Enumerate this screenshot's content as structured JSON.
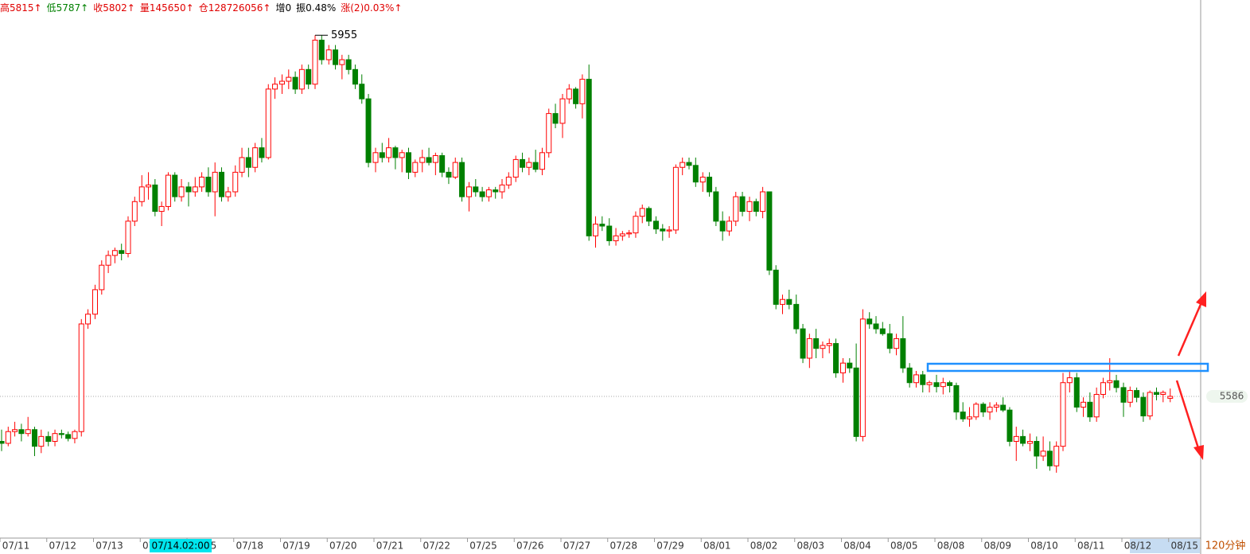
{
  "header": [
    {
      "text": "高5815↑",
      "color": "#e00000"
    },
    {
      "text": "低5787↑",
      "color": "#008000"
    },
    {
      "text": "收5802↑",
      "color": "#e00000"
    },
    {
      "text": "量145650↑",
      "color": "#e00000"
    },
    {
      "text": "仓128726056↑",
      "color": "#e00000"
    },
    {
      "text": "增0",
      "color": "#000000"
    },
    {
      "text": "振0.48%",
      "color": "#000000"
    },
    {
      "text": "涨(2)0.03%↑",
      "color": "#e00000"
    }
  ],
  "chart_data": {
    "type": "candlestick",
    "ylim": [
      5442,
      5991
    ],
    "up_color": "#ff0000",
    "down_color": "#008000",
    "high_annotation": {
      "label": "5955",
      "value": 5955
    },
    "last_price": 5586,
    "period_label": "120分钟",
    "cursor_label": "07/14.02:00",
    "days": [
      {
        "label": "07/11",
        "candles": [
          [
            5540,
            5552,
            5530,
            5538
          ],
          [
            5538,
            5555,
            5535,
            5550
          ],
          [
            5550,
            5560,
            5545,
            5552
          ],
          [
            5552,
            5558,
            5540,
            5548
          ],
          [
            5548,
            5565,
            5545,
            5552
          ],
          [
            5552,
            5555,
            5525,
            5535
          ],
          [
            5535,
            5552,
            5528,
            5545
          ]
        ]
      },
      {
        "label": "07/12",
        "candles": [
          [
            5545,
            5550,
            5535,
            5540
          ],
          [
            5540,
            5552,
            5535,
            5548
          ],
          [
            5548,
            5552,
            5543,
            5547
          ],
          [
            5547,
            5550,
            5540,
            5543
          ],
          [
            5543,
            5552,
            5538,
            5550
          ],
          [
            5550,
            5665,
            5545,
            5660
          ],
          [
            5660,
            5675,
            5655,
            5670
          ]
        ]
      },
      {
        "label": "07/13",
        "candles": [
          [
            5670,
            5700,
            5665,
            5695
          ],
          [
            5695,
            5725,
            5690,
            5720
          ],
          [
            5720,
            5735,
            5712,
            5730
          ],
          [
            5730,
            5738,
            5722,
            5735
          ],
          [
            5735,
            5742,
            5725,
            5732
          ],
          [
            5732,
            5770,
            5728,
            5765
          ],
          [
            5765,
            5790,
            5760,
            5785
          ]
        ]
      },
      {
        "label": "07/14",
        "candles": [
          [
            5785,
            5812,
            5780,
            5800
          ],
          [
            5800,
            5815,
            5787,
            5802
          ],
          [
            5802,
            5808,
            5770,
            5775
          ],
          [
            5775,
            5785,
            5760,
            5780
          ],
          [
            5780,
            5815,
            5776,
            5812
          ],
          [
            5812,
            5815,
            5785,
            5790
          ],
          [
            5790,
            5808,
            5785,
            5800
          ]
        ]
      },
      {
        "label": "07/15",
        "candles": [
          [
            5800,
            5805,
            5780,
            5795
          ],
          [
            5795,
            5810,
            5790,
            5800
          ],
          [
            5800,
            5815,
            5795,
            5810
          ],
          [
            5810,
            5820,
            5790,
            5795
          ],
          [
            5795,
            5825,
            5770,
            5815
          ],
          [
            5815,
            5820,
            5785,
            5790
          ],
          [
            5790,
            5800,
            5785,
            5795
          ]
        ]
      },
      {
        "label": "07/18",
        "candles": [
          [
            5795,
            5822,
            5790,
            5815
          ],
          [
            5815,
            5840,
            5810,
            5830
          ],
          [
            5830,
            5840,
            5810,
            5820
          ],
          [
            5820,
            5845,
            5815,
            5840
          ],
          [
            5840,
            5850,
            5825,
            5830
          ],
          [
            5830,
            5905,
            5828,
            5900
          ],
          [
            5900,
            5912,
            5890,
            5905
          ]
        ]
      },
      {
        "label": "07/19",
        "candles": [
          [
            5905,
            5915,
            5895,
            5908
          ],
          [
            5908,
            5920,
            5900,
            5912
          ],
          [
            5912,
            5918,
            5895,
            5900
          ],
          [
            5900,
            5925,
            5895,
            5920
          ],
          [
            5920,
            5925,
            5900,
            5905
          ],
          [
            5905,
            5955,
            5900,
            5950
          ],
          [
            5950,
            5955,
            5925,
            5930
          ]
        ]
      },
      {
        "label": "07/20",
        "candles": [
          [
            5930,
            5945,
            5925,
            5940
          ],
          [
            5940,
            5945,
            5920,
            5925
          ],
          [
            5925,
            5935,
            5910,
            5930
          ],
          [
            5930,
            5935,
            5915,
            5920
          ],
          [
            5920,
            5925,
            5900,
            5905
          ],
          [
            5905,
            5915,
            5885,
            5890
          ],
          [
            5890,
            5895,
            5820,
            5825
          ]
        ]
      },
      {
        "label": "07/21",
        "candles": [
          [
            5825,
            5840,
            5815,
            5835
          ],
          [
            5835,
            5845,
            5825,
            5830
          ],
          [
            5830,
            5850,
            5825,
            5840
          ],
          [
            5840,
            5842,
            5818,
            5830
          ],
          [
            5830,
            5838,
            5815,
            5835
          ],
          [
            5835,
            5840,
            5808,
            5815
          ],
          [
            5815,
            5828,
            5810,
            5825
          ]
        ]
      },
      {
        "label": "07/22",
        "candles": [
          [
            5825,
            5838,
            5815,
            5830
          ],
          [
            5830,
            5840,
            5822,
            5825
          ],
          [
            5825,
            5835,
            5812,
            5832
          ],
          [
            5832,
            5835,
            5810,
            5815
          ],
          [
            5815,
            5820,
            5803,
            5810
          ],
          [
            5810,
            5830,
            5808,
            5825
          ],
          [
            5825,
            5830,
            5785,
            5790
          ]
        ]
      },
      {
        "label": "07/25",
        "candles": [
          [
            5790,
            5805,
            5775,
            5800
          ],
          [
            5800,
            5808,
            5790,
            5795
          ],
          [
            5795,
            5800,
            5785,
            5790
          ],
          [
            5790,
            5800,
            5785,
            5797
          ],
          [
            5797,
            5800,
            5788,
            5795
          ],
          [
            5795,
            5808,
            5788,
            5802
          ],
          [
            5802,
            5815,
            5798,
            5810
          ]
        ]
      },
      {
        "label": "07/26",
        "candles": [
          [
            5810,
            5832,
            5805,
            5828
          ],
          [
            5828,
            5835,
            5815,
            5820
          ],
          [
            5820,
            5830,
            5812,
            5825
          ],
          [
            5825,
            5838,
            5815,
            5818
          ],
          [
            5818,
            5840,
            5812,
            5835
          ],
          [
            5835,
            5880,
            5830,
            5875
          ],
          [
            5875,
            5885,
            5860,
            5865
          ]
        ]
      },
      {
        "label": "07/27",
        "candles": [
          [
            5865,
            5895,
            5850,
            5890
          ],
          [
            5890,
            5905,
            5885,
            5900
          ],
          [
            5900,
            5902,
            5880,
            5885
          ],
          [
            5885,
            5915,
            5870,
            5910
          ],
          [
            5910,
            5925,
            5745,
            5750
          ],
          [
            5750,
            5770,
            5738,
            5762
          ],
          [
            5762,
            5770,
            5755,
            5760
          ]
        ]
      },
      {
        "label": "07/28",
        "candles": [
          [
            5760,
            5768,
            5740,
            5745
          ],
          [
            5745,
            5758,
            5740,
            5750
          ],
          [
            5750,
            5755,
            5745,
            5752
          ],
          [
            5752,
            5756,
            5748,
            5753
          ],
          [
            5753,
            5775,
            5748,
            5770
          ],
          [
            5770,
            5782,
            5763,
            5778
          ],
          [
            5778,
            5780,
            5760,
            5765
          ]
        ]
      },
      {
        "label": "07/29",
        "candles": [
          [
            5765,
            5770,
            5752,
            5757
          ],
          [
            5757,
            5762,
            5745,
            5755
          ],
          [
            5755,
            5760,
            5748,
            5756
          ],
          [
            5756,
            5823,
            5752,
            5820
          ],
          [
            5820,
            5830,
            5812,
            5825
          ],
          [
            5825,
            5830,
            5818,
            5822
          ],
          [
            5822,
            5830,
            5800,
            5805
          ]
        ]
      },
      {
        "label": "08/01",
        "candles": [
          [
            5805,
            5815,
            5795,
            5810
          ],
          [
            5810,
            5815,
            5790,
            5795
          ],
          [
            5795,
            5800,
            5760,
            5765
          ],
          [
            5765,
            5775,
            5745,
            5755
          ],
          [
            5755,
            5770,
            5750,
            5765
          ],
          [
            5765,
            5795,
            5760,
            5790
          ],
          [
            5790,
            5795,
            5770,
            5775
          ]
        ]
      },
      {
        "label": "08/02",
        "candles": [
          [
            5775,
            5790,
            5765,
            5785
          ],
          [
            5785,
            5788,
            5770,
            5775
          ],
          [
            5775,
            5800,
            5768,
            5795
          ],
          [
            5795,
            5795,
            5710,
            5715
          ],
          [
            5715,
            5720,
            5675,
            5680
          ],
          [
            5680,
            5690,
            5670,
            5685
          ],
          [
            5685,
            5695,
            5675,
            5680
          ]
        ]
      },
      {
        "label": "08/03",
        "candles": [
          [
            5680,
            5690,
            5650,
            5655
          ],
          [
            5655,
            5660,
            5620,
            5625
          ],
          [
            5625,
            5650,
            5615,
            5645
          ],
          [
            5645,
            5655,
            5625,
            5635
          ],
          [
            5635,
            5642,
            5625,
            5638
          ],
          [
            5638,
            5645,
            5630,
            5640
          ],
          [
            5640,
            5645,
            5605,
            5610
          ]
        ]
      },
      {
        "label": "08/04",
        "candles": [
          [
            5610,
            5625,
            5600,
            5620
          ],
          [
            5620,
            5625,
            5610,
            5615
          ],
          [
            5615,
            5640,
            5540,
            5545
          ],
          [
            5545,
            5675,
            5540,
            5665
          ],
          [
            5665,
            5672,
            5655,
            5660
          ],
          [
            5660,
            5668,
            5650,
            5655
          ],
          [
            5655,
            5662,
            5648,
            5650
          ]
        ]
      },
      {
        "label": "08/05",
        "candles": [
          [
            5650,
            5660,
            5630,
            5635
          ],
          [
            5635,
            5650,
            5628,
            5645
          ],
          [
            5645,
            5668,
            5610,
            5615
          ],
          [
            5615,
            5620,
            5595,
            5600
          ],
          [
            5600,
            5612,
            5595,
            5608
          ],
          [
            5608,
            5612,
            5590,
            5598
          ],
          [
            5598,
            5602,
            5590,
            5600
          ]
        ]
      },
      {
        "label": "08/08",
        "candles": [
          [
            5600,
            5608,
            5590,
            5596
          ],
          [
            5596,
            5605,
            5588,
            5600
          ],
          [
            5600,
            5602,
            5590,
            5597
          ],
          [
            5597,
            5600,
            5562,
            5570
          ],
          [
            5570,
            5580,
            5560,
            5563
          ],
          [
            5563,
            5575,
            5555,
            5565
          ],
          [
            5565,
            5580,
            5562,
            5578
          ]
        ]
      },
      {
        "label": "08/09",
        "candles": [
          [
            5578,
            5580,
            5565,
            5570
          ],
          [
            5570,
            5580,
            5562,
            5575
          ],
          [
            5575,
            5580,
            5570,
            5577
          ],
          [
            5577,
            5585,
            5570,
            5572
          ],
          [
            5572,
            5575,
            5535,
            5540
          ],
          [
            5540,
            5555,
            5520,
            5545
          ],
          [
            5545,
            5552,
            5535,
            5538
          ]
        ]
      },
      {
        "label": "08/10",
        "candles": [
          [
            5538,
            5548,
            5530,
            5540
          ],
          [
            5540,
            5545,
            5512,
            5525
          ],
          [
            5525,
            5545,
            5520,
            5530
          ],
          [
            5530,
            5540,
            5510,
            5515
          ],
          [
            5515,
            5540,
            5508,
            5535
          ],
          [
            5535,
            5610,
            5530,
            5600
          ],
          [
            5600,
            5612,
            5590,
            5605
          ]
        ]
      },
      {
        "label": "08/11",
        "candles": [
          [
            5605,
            5610,
            5570,
            5575
          ],
          [
            5575,
            5585,
            5565,
            5580
          ],
          [
            5580,
            5590,
            5560,
            5565
          ],
          [
            5565,
            5595,
            5560,
            5588
          ],
          [
            5588,
            5605,
            5584,
            5600
          ],
          [
            5600,
            5625,
            5592,
            5602
          ],
          [
            5602,
            5608,
            5590,
            5595
          ]
        ]
      },
      {
        "label": "08/12",
        "candles": [
          [
            5595,
            5600,
            5565,
            5580
          ],
          [
            5580,
            5596,
            5575,
            5592
          ],
          [
            5592,
            5595,
            5580,
            5585
          ],
          [
            5585,
            5590,
            5560,
            5566
          ],
          [
            5566,
            5592,
            5562,
            5590
          ],
          [
            5590,
            5595,
            5582,
            5588
          ],
          [
            5588,
            5592,
            5580,
            5590
          ]
        ]
      },
      {
        "label": "08/15",
        "candles": [
          [
            5584,
            5594,
            5580,
            5586
          ]
        ]
      }
    ]
  }
}
